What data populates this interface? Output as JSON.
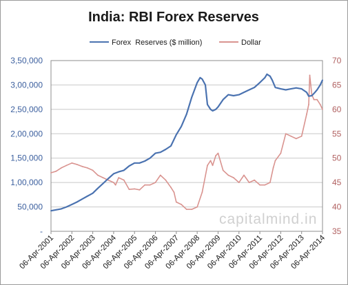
{
  "chart_data": {
    "type": "line",
    "title": "India: RBI Forex Reserves",
    "watermark": "capitalmind.in",
    "x_tick_labels": [
      "06-Apr-2001",
      "06-Apr-2002",
      "06-Apr-2003",
      "06-Apr-2004",
      "06-Apr-2005",
      "06-Apr-2006",
      "06-Apr-2007",
      "06-Apr-2008",
      "06-Apr-2009",
      "06-Apr-2010",
      "06-Apr-2011",
      "06-Apr-2012",
      "06-Apr-2013",
      "06-Apr-2014"
    ],
    "left_axis": {
      "ylim": [
        0,
        350000
      ],
      "tick_labels": [
        "-",
        "50,000",
        "1,00,000",
        "1,50,000",
        "2,00,000",
        "2,50,000",
        "3,00,000",
        "3,50,000"
      ]
    },
    "right_axis": {
      "ylim": [
        35,
        70
      ],
      "tick_labels": [
        "35",
        "40",
        "45",
        "50",
        "55",
        "60",
        "65",
        "70"
      ]
    },
    "grid": "horizontal",
    "legend_position": "top",
    "series": [
      {
        "name": "Forex  Reserves ($ million)",
        "axis": "left",
        "color": "#4a72b0",
        "x": [
          2001.26,
          2001.5,
          2001.75,
          2002.0,
          2002.26,
          2002.5,
          2002.75,
          2003.0,
          2003.26,
          2003.5,
          2003.75,
          2004.0,
          2004.26,
          2004.5,
          2004.75,
          2005.0,
          2005.26,
          2005.5,
          2005.75,
          2006.0,
          2006.26,
          2006.5,
          2006.75,
          2007.0,
          2007.26,
          2007.5,
          2007.75,
          2008.0,
          2008.26,
          2008.4,
          2008.5,
          2008.65,
          2008.75,
          2008.9,
          2009.0,
          2009.15,
          2009.26,
          2009.5,
          2009.75,
          2010.0,
          2010.26,
          2010.5,
          2010.75,
          2011.0,
          2011.26,
          2011.5,
          2011.6,
          2011.75,
          2011.85,
          2012.0,
          2012.26,
          2012.5,
          2012.75,
          2013.0,
          2013.26,
          2013.5,
          2013.6,
          2013.75,
          2013.9,
          2014.0,
          2014.15,
          2014.26
        ],
        "values": [
          42000,
          44000,
          46000,
          50000,
          55000,
          60000,
          66000,
          72000,
          78000,
          88000,
          98000,
          108000,
          118000,
          122000,
          125000,
          134000,
          140000,
          140000,
          144000,
          150000,
          160000,
          162000,
          168000,
          175000,
          198000,
          215000,
          240000,
          275000,
          305000,
          315000,
          312000,
          300000,
          260000,
          250000,
          247000,
          250000,
          255000,
          270000,
          280000,
          278000,
          280000,
          285000,
          290000,
          295000,
          305000,
          315000,
          322000,
          318000,
          310000,
          295000,
          292000,
          290000,
          292000,
          294000,
          292000,
          285000,
          277000,
          278000,
          285000,
          290000,
          300000,
          310000
        ]
      },
      {
        "name": "Dollar",
        "axis": "right",
        "color": "#d9938f",
        "x": [
          2001.26,
          2001.5,
          2001.75,
          2002.0,
          2002.26,
          2002.5,
          2002.75,
          2003.0,
          2003.26,
          2003.5,
          2003.75,
          2004.0,
          2004.26,
          2004.35,
          2004.5,
          2004.75,
          2005.0,
          2005.26,
          2005.5,
          2005.75,
          2006.0,
          2006.26,
          2006.5,
          2006.75,
          2007.0,
          2007.15,
          2007.26,
          2007.5,
          2007.75,
          2008.0,
          2008.26,
          2008.5,
          2008.75,
          2008.9,
          2009.0,
          2009.15,
          2009.26,
          2009.5,
          2009.75,
          2010.0,
          2010.26,
          2010.5,
          2010.75,
          2011.0,
          2011.26,
          2011.5,
          2011.75,
          2011.9,
          2012.0,
          2012.26,
          2012.5,
          2012.75,
          2013.0,
          2013.26,
          2013.5,
          2013.6,
          2013.65,
          2013.75,
          2013.85,
          2014.0,
          2014.15,
          2014.26
        ],
        "values": [
          47.0,
          47.3,
          48.0,
          48.5,
          49.0,
          48.7,
          48.3,
          48.0,
          47.5,
          46.5,
          46.0,
          45.5,
          45.0,
          44.5,
          46.0,
          45.5,
          43.6,
          43.7,
          43.5,
          44.5,
          44.5,
          45.0,
          46.5,
          45.5,
          44.0,
          43.0,
          41.0,
          40.5,
          39.5,
          39.5,
          40.0,
          43.0,
          48.5,
          49.5,
          48.5,
          50.5,
          51.0,
          47.5,
          46.5,
          46.0,
          45.0,
          46.5,
          45.0,
          45.5,
          44.5,
          44.5,
          45.0,
          48.0,
          49.5,
          51.0,
          55.0,
          54.5,
          54.0,
          54.5,
          59.0,
          61.0,
          67.0,
          63.0,
          62.0,
          62.0,
          61.0,
          60.0
        ]
      }
    ]
  }
}
